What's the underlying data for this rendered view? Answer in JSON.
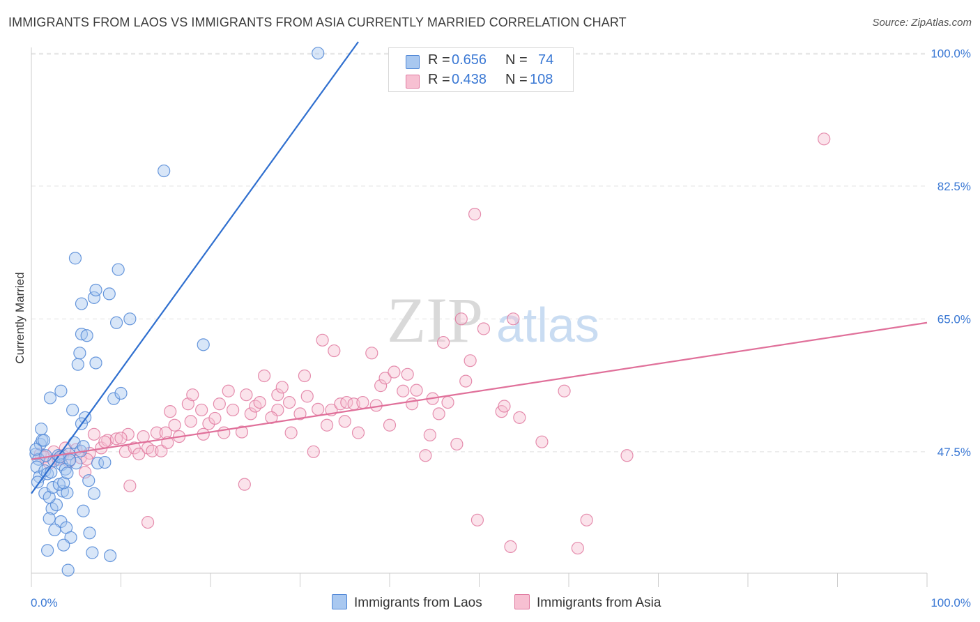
{
  "title": "IMMIGRANTS FROM LAOS VS IMMIGRANTS FROM ASIA CURRENTLY MARRIED CORRELATION CHART",
  "source": "Source: ZipAtlas.com",
  "watermark": {
    "zip": "ZIP",
    "atlas": "atlas"
  },
  "legend": {
    "r_label": "R =",
    "n_label": "N =",
    "rows": [
      {
        "r": "0.656",
        "n": "74",
        "color": "#a9c8f0",
        "border": "#4f86d6"
      },
      {
        "r": "0.438",
        "n": "108",
        "color": "#f7c0d2",
        "border": "#e07aa0"
      }
    ]
  },
  "bottom_legend": {
    "laos": "Immigrants from Laos",
    "asia": "Immigrants from Asia"
  },
  "colors": {
    "laos_fill": "#a9c8f0",
    "laos_stroke": "#4f86d6",
    "laos_line": "#2f6fcf",
    "asia_fill": "#f7c0d2",
    "asia_stroke": "#e07aa0",
    "asia_line": "#e0709a",
    "tick_text": "#3a78d4",
    "grid": "#e0e0e0"
  },
  "chart_data": {
    "type": "scatter",
    "xlabel": "",
    "ylabel": "Currently Married",
    "xlim": [
      0,
      100
    ],
    "ylim": [
      31.5,
      101.5
    ],
    "x_tick_labels": [
      "0.0%",
      "100.0%"
    ],
    "y_ticks": [
      47.5,
      65.0,
      82.5,
      100.0
    ],
    "y_tick_labels": [
      "47.5%",
      "65.0%",
      "82.5%",
      "100.0%"
    ],
    "grid": true,
    "legend_position": "top-center",
    "series": [
      {
        "name": "Immigrants from Laos",
        "trend": [
          [
            0.0,
            42.0
          ],
          [
            36.5,
            101.5
          ]
        ],
        "points": [
          [
            0.5,
            47.2
          ],
          [
            0.8,
            46.5
          ],
          [
            1.0,
            48.5
          ],
          [
            1.2,
            49.0
          ],
          [
            0.6,
            45.5
          ],
          [
            0.9,
            44.2
          ],
          [
            1.5,
            45.0
          ],
          [
            1.8,
            44.6
          ],
          [
            2.2,
            44.8
          ],
          [
            0.7,
            43.5
          ],
          [
            1.1,
            50.5
          ],
          [
            2.5,
            46.3
          ],
          [
            3.0,
            47.0
          ],
          [
            3.4,
            45.8
          ],
          [
            3.8,
            45.2
          ],
          [
            4.2,
            47.2
          ],
          [
            4.8,
            48.7
          ],
          [
            5.0,
            46.0
          ],
          [
            5.5,
            47.6
          ],
          [
            6.0,
            52.0
          ],
          [
            6.4,
            43.7
          ],
          [
            7.0,
            42.0
          ],
          [
            3.5,
            42.3
          ],
          [
            4.0,
            42.1
          ],
          [
            2.3,
            40.0
          ],
          [
            2.0,
            38.7
          ],
          [
            2.8,
            40.5
          ],
          [
            3.3,
            38.3
          ],
          [
            3.9,
            37.5
          ],
          [
            4.4,
            36.2
          ],
          [
            3.6,
            35.2
          ],
          [
            5.8,
            39.7
          ],
          [
            6.5,
            36.8
          ],
          [
            1.8,
            34.5
          ],
          [
            2.6,
            37.2
          ],
          [
            4.1,
            31.9
          ],
          [
            6.8,
            34.2
          ],
          [
            8.8,
            33.8
          ],
          [
            1.5,
            42.0
          ],
          [
            2.0,
            41.5
          ],
          [
            2.4,
            42.8
          ],
          [
            3.1,
            43.2
          ],
          [
            3.6,
            43.4
          ],
          [
            4.0,
            44.7
          ],
          [
            5.8,
            48.2
          ],
          [
            5.6,
            51.2
          ],
          [
            7.4,
            46.0
          ],
          [
            8.2,
            46.1
          ],
          [
            9.2,
            54.5
          ],
          [
            10.0,
            55.2
          ],
          [
            7.2,
            59.2
          ],
          [
            5.2,
            59.0
          ],
          [
            5.4,
            60.5
          ],
          [
            5.6,
            63.0
          ],
          [
            6.2,
            62.8
          ],
          [
            5.6,
            67.0
          ],
          [
            7.0,
            67.8
          ],
          [
            7.2,
            68.8
          ],
          [
            8.7,
            68.3
          ],
          [
            9.5,
            64.5
          ],
          [
            11.0,
            65.0
          ],
          [
            9.7,
            71.5
          ],
          [
            4.9,
            73.0
          ],
          [
            14.8,
            84.5
          ],
          [
            19.2,
            61.6
          ],
          [
            2.1,
            54.6
          ],
          [
            3.3,
            55.5
          ],
          [
            4.6,
            53.0
          ],
          [
            1.4,
            49.0
          ],
          [
            0.5,
            47.8
          ],
          [
            1.6,
            47.0
          ],
          [
            3.2,
            46.8
          ],
          [
            4.3,
            46.4
          ],
          [
            32.0,
            100.0
          ]
        ]
      },
      {
        "name": "Immigrants from Asia",
        "trend": [
          [
            0.0,
            46.5
          ],
          [
            100.0,
            64.5
          ]
        ],
        "points": [
          [
            1.0,
            47.2
          ],
          [
            1.5,
            46.8
          ],
          [
            2.0,
            46.0
          ],
          [
            2.5,
            47.5
          ],
          [
            3.0,
            46.5
          ],
          [
            3.5,
            47.0
          ],
          [
            4.2,
            46.2
          ],
          [
            5.0,
            47.8
          ],
          [
            5.5,
            46.7
          ],
          [
            6.0,
            44.8
          ],
          [
            6.5,
            47.3
          ],
          [
            7.0,
            49.8
          ],
          [
            7.8,
            48.0
          ],
          [
            8.5,
            49.0
          ],
          [
            9.5,
            49.2
          ],
          [
            10.5,
            47.5
          ],
          [
            10.8,
            49.8
          ],
          [
            11.0,
            43.0
          ],
          [
            11.5,
            48.0
          ],
          [
            12.0,
            47.2
          ],
          [
            12.5,
            49.5
          ],
          [
            13.0,
            48.0
          ],
          [
            13.5,
            47.6
          ],
          [
            14.0,
            50.0
          ],
          [
            14.5,
            47.6
          ],
          [
            15.0,
            50.0
          ],
          [
            15.5,
            52.8
          ],
          [
            16.0,
            51.0
          ],
          [
            16.5,
            49.5
          ],
          [
            17.5,
            53.8
          ],
          [
            17.8,
            51.5
          ],
          [
            18.0,
            55.0
          ],
          [
            19.0,
            53.0
          ],
          [
            19.2,
            49.8
          ],
          [
            19.8,
            51.2
          ],
          [
            20.5,
            51.9
          ],
          [
            21.5,
            50.0
          ],
          [
            22.0,
            55.5
          ],
          [
            22.5,
            53.0
          ],
          [
            23.5,
            50.1
          ],
          [
            24.0,
            55.0
          ],
          [
            24.5,
            52.5
          ],
          [
            25.0,
            53.5
          ],
          [
            25.5,
            54.0
          ],
          [
            26.0,
            57.5
          ],
          [
            27.5,
            53.0
          ],
          [
            27.5,
            55.0
          ],
          [
            28.0,
            56.0
          ],
          [
            28.8,
            54.0
          ],
          [
            29.0,
            50.0
          ],
          [
            30.0,
            52.5
          ],
          [
            30.8,
            54.8
          ],
          [
            30.5,
            57.5
          ],
          [
            31.5,
            47.5
          ],
          [
            32.0,
            53.1
          ],
          [
            32.5,
            62.2
          ],
          [
            33.0,
            51.0
          ],
          [
            33.5,
            53.0
          ],
          [
            33.8,
            60.8
          ],
          [
            34.5,
            53.8
          ],
          [
            35.0,
            51.5
          ],
          [
            35.2,
            54.0
          ],
          [
            36.0,
            53.8
          ],
          [
            36.5,
            50.0
          ],
          [
            37.0,
            54.0
          ],
          [
            38.0,
            60.5
          ],
          [
            38.5,
            53.6
          ],
          [
            39.0,
            56.2
          ],
          [
            39.5,
            57.2
          ],
          [
            40.0,
            51.0
          ],
          [
            40.5,
            58.0
          ],
          [
            41.5,
            55.5
          ],
          [
            42.0,
            57.7
          ],
          [
            42.5,
            53.8
          ],
          [
            43.0,
            55.6
          ],
          [
            44.0,
            47.0
          ],
          [
            44.5,
            49.7
          ],
          [
            44.8,
            54.5
          ],
          [
            45.5,
            52.5
          ],
          [
            46.0,
            61.9
          ],
          [
            46.5,
            54.0
          ],
          [
            47.5,
            48.5
          ],
          [
            48.0,
            65.0
          ],
          [
            48.5,
            56.8
          ],
          [
            49.0,
            59.5
          ],
          [
            49.5,
            78.8
          ],
          [
            49.8,
            38.5
          ],
          [
            50.5,
            63.7
          ],
          [
            52.5,
            52.8
          ],
          [
            52.8,
            53.5
          ],
          [
            53.5,
            35.0
          ],
          [
            53.8,
            65.0
          ],
          [
            54.5,
            52.0
          ],
          [
            57.0,
            48.8
          ],
          [
            59.5,
            55.5
          ],
          [
            61.0,
            34.8
          ],
          [
            62.0,
            38.5
          ],
          [
            66.5,
            47.0
          ],
          [
            88.5,
            88.7
          ],
          [
            13.0,
            38.2
          ],
          [
            23.8,
            43.2
          ],
          [
            10.0,
            49.3
          ],
          [
            3.8,
            48.0
          ],
          [
            6.2,
            46.5
          ],
          [
            8.2,
            48.8
          ],
          [
            15.2,
            48.7
          ],
          [
            21.0,
            53.8
          ],
          [
            26.8,
            52.0
          ]
        ]
      }
    ]
  }
}
